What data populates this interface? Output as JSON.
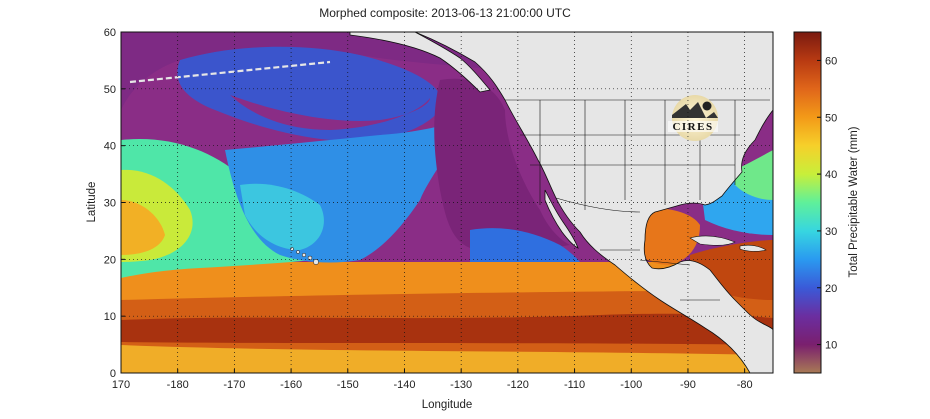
{
  "title": "Morphed composite: 2013-06-13 21:00:00 UTC",
  "map": {
    "xlabel": "Longitude",
    "ylabel": "Latitude",
    "xlim": [
      170,
      285
    ],
    "ylim": [
      0,
      60
    ],
    "x_ticks": [
      170,
      180,
      190,
      200,
      210,
      220,
      230,
      240,
      250,
      260,
      270,
      280
    ],
    "x_tick_labels": [
      "170",
      "-180",
      "-170",
      "-160",
      "-150",
      "-140",
      "-130",
      "-120",
      "-110",
      "-100",
      "-90",
      "-80"
    ],
    "y_ticks": [
      0,
      10,
      20,
      30,
      40,
      50,
      60
    ],
    "y_tick_labels": [
      "0",
      "10",
      "20",
      "30",
      "40",
      "50",
      "60"
    ],
    "grid": "dotted",
    "land_color": "#e6e6e6"
  },
  "colorbar": {
    "label": "Total Precipitable Water (mm)",
    "range": [
      5,
      65
    ],
    "ticks": [
      10,
      20,
      30,
      40,
      50,
      60
    ],
    "tick_labels": [
      "10",
      "20",
      "30",
      "40",
      "50",
      "60"
    ],
    "colors": [
      "#a87a55",
      "#7a1f6e",
      "#6b2ea0",
      "#3a5ad8",
      "#2a9af0",
      "#37d6e0",
      "#5ff09a",
      "#c8ef3a",
      "#f6d02a",
      "#f39a18",
      "#e0661a",
      "#b83a12",
      "#7a1a10"
    ]
  },
  "logo": {
    "text": "CIRES"
  }
}
